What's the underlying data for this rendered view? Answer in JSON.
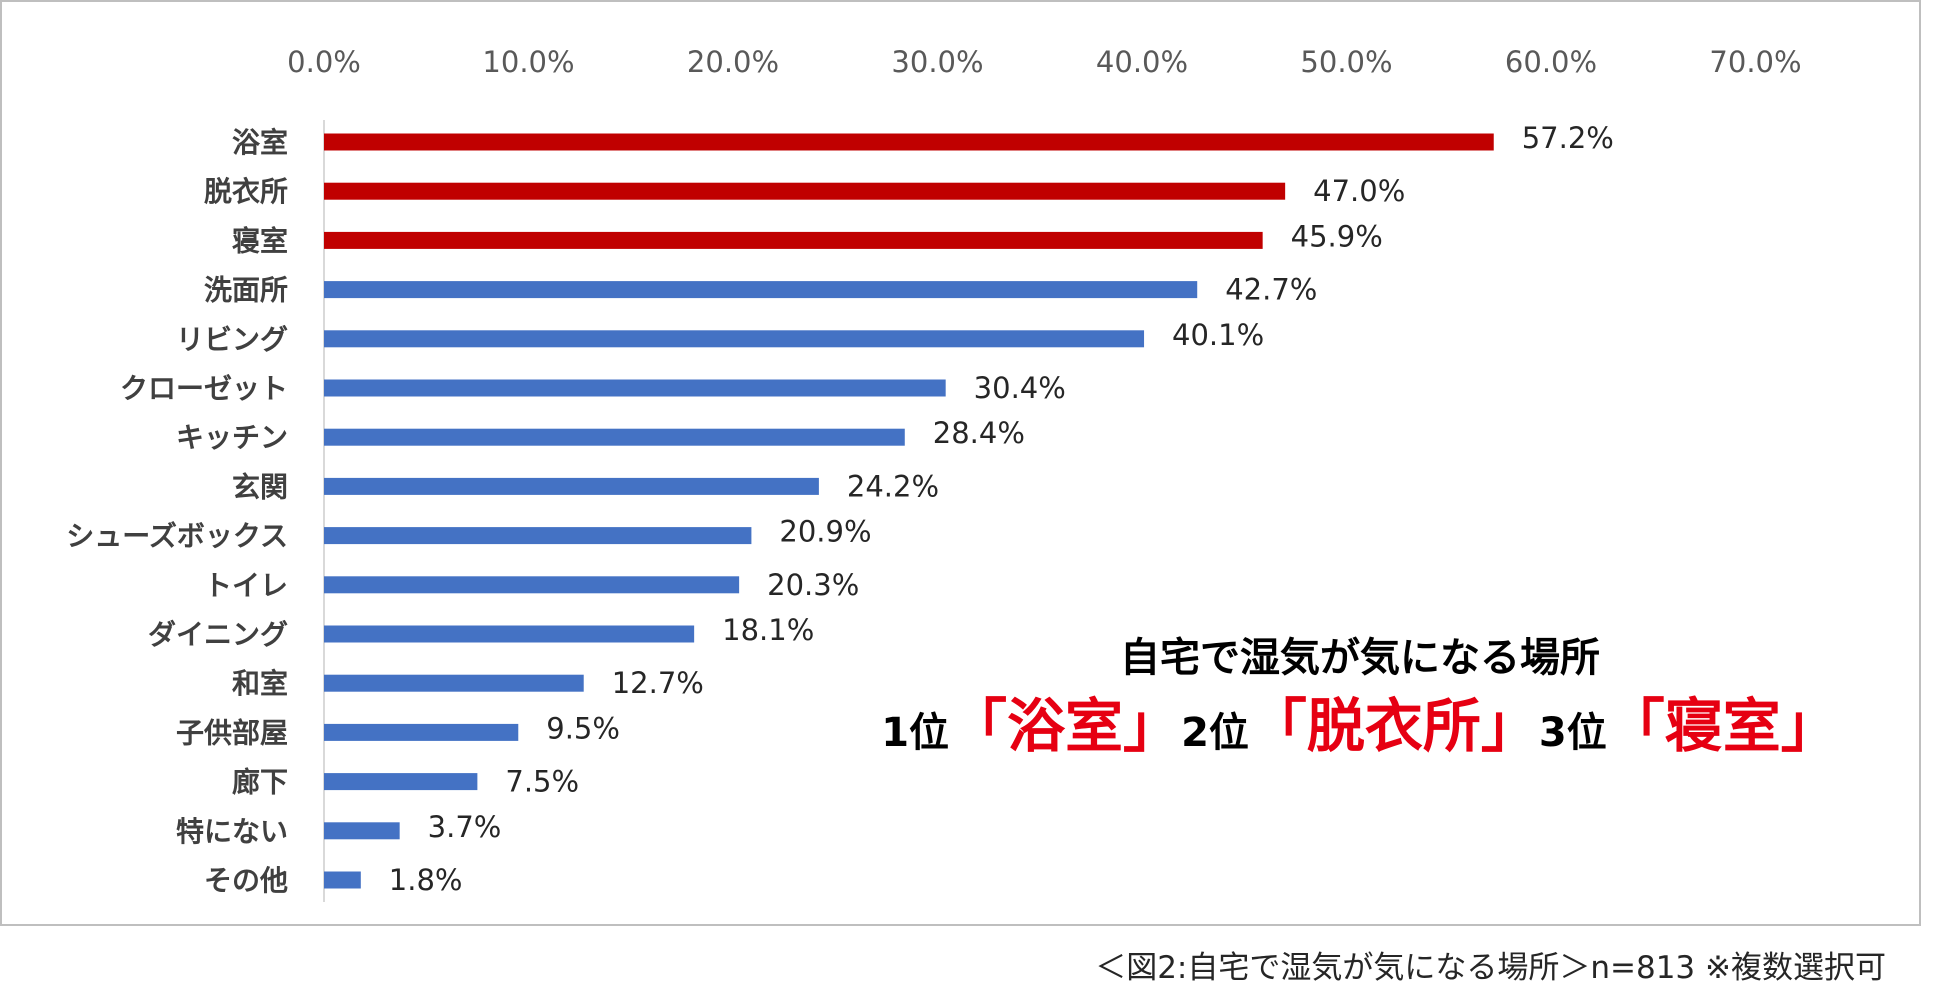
{
  "chart_data": {
    "type": "bar",
    "orientation": "horizontal",
    "categories": [
      "浴室",
      "脱衣所",
      "寝室",
      "洗面所",
      "リビング",
      "クローゼット",
      "キッチン",
      "玄関",
      "シューズボックス",
      "トイレ",
      "ダイニング",
      "和室",
      "子供部屋",
      "廊下",
      "特にない",
      "その他"
    ],
    "values": [
      57.2,
      47.0,
      45.9,
      42.7,
      40.1,
      30.4,
      28.4,
      24.2,
      20.9,
      20.3,
      18.1,
      12.7,
      9.5,
      7.5,
      3.7,
      1.8
    ],
    "value_labels": [
      "57.2%",
      "47.0%",
      "45.9%",
      "42.7%",
      "40.1%",
      "30.4%",
      "28.4%",
      "24.2%",
      "20.9%",
      "20.3%",
      "18.1%",
      "12.7%",
      "9.5%",
      "7.5%",
      "3.7%",
      "1.8%"
    ],
    "bar_colors": [
      "#c00000",
      "#c00000",
      "#c00000",
      "#4472c4",
      "#4472c4",
      "#4472c4",
      "#4472c4",
      "#4472c4",
      "#4472c4",
      "#4472c4",
      "#4472c4",
      "#4472c4",
      "#4472c4",
      "#4472c4",
      "#4472c4",
      "#4472c4"
    ],
    "xlim": [
      0,
      70
    ],
    "xticks": [
      0,
      10,
      20,
      30,
      40,
      50,
      60,
      70
    ],
    "xtick_labels": [
      "0.0%",
      "10.0%",
      "20.0%",
      "30.0%",
      "40.0%",
      "50.0%",
      "60.0%",
      "70.0%"
    ],
    "axis_position": "top",
    "grid": false,
    "title": "",
    "xlabel": "",
    "ylabel": ""
  },
  "headline": {
    "title": "自宅で湿気が気になる場所",
    "rank1_prefix": "1位",
    "rank1_place": "「浴室」",
    "rank2_prefix": "2位",
    "rank2_place": "「脱衣所」",
    "rank3_prefix": "3位",
    "rank3_place": "「寝室」"
  },
  "caption": "＜図2:自宅で湿気が気になる場所＞n=813 ※複数選択可",
  "colors": {
    "highlight": "#c00000",
    "default": "#4472c4",
    "headline_accent": "#e60012"
  }
}
